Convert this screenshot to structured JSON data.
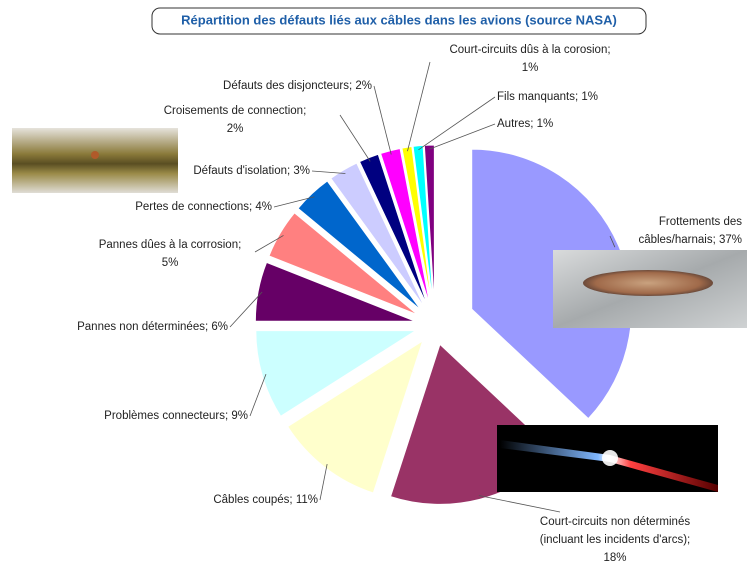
{
  "chart_data": {
    "type": "pie",
    "title": "Répartition des défauts liés aux câbles dans les avions (source NASA)",
    "labels": [
      [
        "Frottements des",
        "câbles/harnais; 37%"
      ],
      [
        "Court-circuits  non déterminés",
        "(incluant les incidents d'arcs);",
        "18%"
      ],
      [
        "Câbles coupés; 11%"
      ],
      [
        "Problèmes connecteurs; 9%"
      ],
      [
        "Pannes non déterminées; 6%"
      ],
      [
        "Pannes dûes à la corrosion;",
        "5%"
      ],
      [
        "Pertes de connections; 4%"
      ],
      [
        "Défauts d'isolation; 3%"
      ],
      [
        "Croisements de connection;",
        "2%"
      ],
      [
        "Défauts des disjoncteurs; 2%"
      ],
      [
        "Court-circuits dûs à la corosion;",
        "1%"
      ],
      [
        "Fils manquants; 1%"
      ],
      [
        "Autres; 1%"
      ]
    ],
    "values": [
      37,
      18,
      11,
      9,
      6,
      5,
      4,
      3,
      2,
      2,
      1,
      1,
      1
    ],
    "colors": [
      "#9999ff",
      "#993366",
      "#ffffcc",
      "#ccffff",
      "#660066",
      "#ff8080",
      "#0066cc",
      "#ccccff",
      "#000080",
      "#ff00ff",
      "#ffff00",
      "#00ffff",
      "#800080"
    ]
  }
}
